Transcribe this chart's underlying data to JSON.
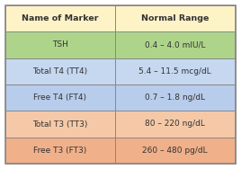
{
  "headers": [
    "Name of Marker",
    "Normal Range"
  ],
  "rows": [
    {
      "marker": "TSH",
      "range": "0.4 – 4.0 mIU/L",
      "color": "#aed48a"
    },
    {
      "marker": "Total T4 (TT4)",
      "range": "5.4 – 11.5 mcg/dL",
      "color": "#c5d8f0"
    },
    {
      "marker": "Free T4 (FT4)",
      "range": "0.7 – 1.8 ng/dL",
      "color": "#b8cceb"
    },
    {
      "marker": "Total T3 (TT3)",
      "range": "80 – 220 ng/dL",
      "color": "#f5c9a8"
    },
    {
      "marker": "Free T3 (FT3)",
      "range": "260 – 480 pg/dL",
      "color": "#f0b08a"
    }
  ],
  "header_color": "#fef3c7",
  "border_color": "#888888",
  "text_color": "#333333",
  "header_fontsize": 6.8,
  "row_fontsize": 6.5,
  "fig_width": 2.68,
  "fig_height": 1.88,
  "dpi": 100
}
